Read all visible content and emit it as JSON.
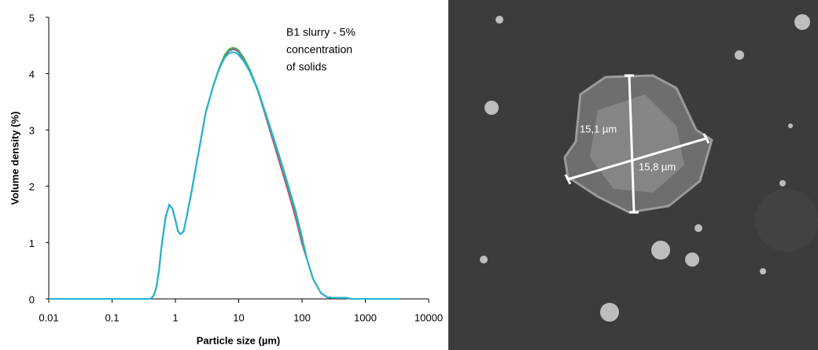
{
  "chart_data": {
    "type": "line",
    "x_label": "Particle size (µm)",
    "y_label": "Volume density (%)",
    "annotation": [
      "B1 slurry - 5%",
      "concentration",
      "of solids"
    ],
    "x": [
      0.01,
      0.4,
      0.45,
      0.5,
      0.55,
      0.6,
      0.7,
      0.8,
      0.9,
      1,
      1.1,
      1.2,
      1.35,
      1.5,
      1.8,
      2,
      2.5,
      3,
      4,
      5,
      6,
      7,
      8,
      9,
      10,
      12,
      15,
      20,
      30,
      40,
      50,
      60,
      80,
      100,
      120,
      150,
      200,
      250,
      300,
      500,
      600,
      1000,
      3500
    ],
    "series": [
      {
        "color": "#e0403a",
        "values": [
          0,
          0,
          0.05,
          0.2,
          0.5,
          0.9,
          1.45,
          1.67,
          1.6,
          1.4,
          1.2,
          1.15,
          1.2,
          1.45,
          1.9,
          2.2,
          2.8,
          3.3,
          3.8,
          4.12,
          4.32,
          4.42,
          4.45,
          4.44,
          4.4,
          4.27,
          4.06,
          3.7,
          3.05,
          2.58,
          2.22,
          1.92,
          1.42,
          0.98,
          0.7,
          0.35,
          0.1,
          0.03,
          0.02,
          0.02,
          0,
          0,
          0
        ]
      },
      {
        "color": "#8064a2",
        "values": [
          0,
          0,
          0.05,
          0.2,
          0.5,
          0.9,
          1.45,
          1.67,
          1.6,
          1.4,
          1.2,
          1.15,
          1.2,
          1.45,
          1.9,
          2.2,
          2.8,
          3.3,
          3.8,
          4.1,
          4.3,
          4.4,
          4.43,
          4.42,
          4.38,
          4.25,
          4.05,
          3.7,
          3.08,
          2.62,
          2.27,
          1.97,
          1.47,
          1.02,
          0.7,
          0.35,
          0.1,
          0.03,
          0.02,
          0.02,
          0,
          0,
          0
        ]
      },
      {
        "color": "#4caf50",
        "values": [
          0,
          0,
          0.05,
          0.2,
          0.5,
          0.9,
          1.45,
          1.67,
          1.6,
          1.4,
          1.2,
          1.15,
          1.2,
          1.45,
          1.9,
          2.2,
          2.8,
          3.3,
          3.8,
          4.12,
          4.33,
          4.43,
          4.46,
          4.45,
          4.41,
          4.28,
          4.07,
          3.72,
          3.12,
          2.68,
          2.33,
          2.03,
          1.55,
          1.1,
          0.7,
          0.35,
          0.1,
          0.03,
          0.02,
          0.02,
          0,
          0,
          0
        ]
      },
      {
        "color": "#1fb5d6",
        "values": [
          0,
          0,
          0.05,
          0.2,
          0.5,
          0.9,
          1.45,
          1.67,
          1.6,
          1.4,
          1.2,
          1.15,
          1.2,
          1.45,
          1.9,
          2.2,
          2.8,
          3.3,
          3.8,
          4.1,
          4.28,
          4.36,
          4.38,
          4.37,
          4.33,
          4.22,
          4.03,
          3.7,
          3.1,
          2.65,
          2.3,
          2.0,
          1.5,
          1.05,
          0.7,
          0.35,
          0.1,
          0.03,
          0.02,
          0.02,
          0,
          0,
          0
        ]
      }
    ],
    "xscale": "log",
    "xlim": [
      0.01,
      10000
    ],
    "xticks": [
      0.01,
      0.1,
      1,
      10,
      100,
      1000,
      10000
    ],
    "ylim": [
      0,
      5
    ],
    "yticks": [
      0,
      1,
      2,
      3,
      4,
      5
    ]
  },
  "micrograph": {
    "annotations": [
      "15,1 µm",
      "15,8 µm"
    ]
  }
}
